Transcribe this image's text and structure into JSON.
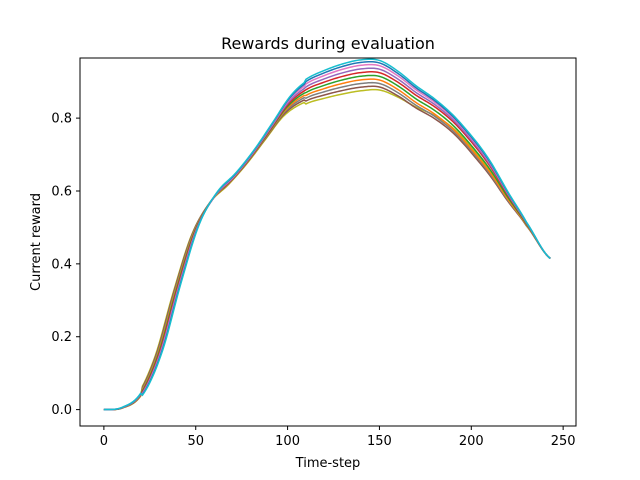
{
  "chart_data": {
    "type": "line",
    "title": "Rewards during evaluation",
    "xlabel": "Time-step",
    "ylabel": "Current reward",
    "xlim": [
      -13,
      257
    ],
    "ylim": [
      -0.045,
      0.965
    ],
    "xticks": [
      0,
      50,
      100,
      150,
      200,
      250
    ],
    "yticks": [
      0.0,
      0.2,
      0.4,
      0.6,
      0.8
    ],
    "ytick_labels": [
      "0.0",
      "0.2",
      "0.4",
      "0.6",
      "0.8"
    ],
    "grid": false,
    "legend": "none",
    "base_curve": {
      "x": [
        0,
        10,
        20,
        30,
        40,
        50,
        60,
        70,
        80,
        90,
        100,
        110,
        120,
        130,
        140,
        150,
        160,
        170,
        180,
        190,
        200,
        210,
        220,
        230,
        243
      ],
      "y": [
        0.0,
        0.005,
        0.04,
        0.15,
        0.33,
        0.49,
        0.58,
        0.63,
        0.69,
        0.76,
        0.83,
        0.87,
        0.89,
        0.905,
        0.915,
        0.915,
        0.89,
        0.855,
        0.825,
        0.785,
        0.73,
        0.665,
        0.585,
        0.51,
        0.415
      ]
    },
    "series": [
      {
        "offset": [
          0.0,
          -0.012,
          -0.04,
          -0.01
        ],
        "color": "#bcbd22"
      },
      {
        "offset": [
          0.0,
          -0.008,
          -0.03,
          -0.025
        ],
        "color": "#8c564b"
      },
      {
        "offset": [
          0.0,
          -0.005,
          -0.02,
          -0.02
        ],
        "color": "#7f7f7f"
      },
      {
        "offset": [
          0.0,
          -0.003,
          -0.01,
          -0.015
        ],
        "color": "#ff7f0e"
      },
      {
        "offset": [
          0.0,
          0.0,
          0.0,
          -0.005
        ],
        "color": "#2ca02c"
      },
      {
        "offset": [
          0.0,
          0.003,
          0.01,
          0.005
        ],
        "color": "#d62728"
      },
      {
        "offset": [
          0.0,
          0.006,
          0.02,
          0.01
        ],
        "color": "#9467bd"
      },
      {
        "offset": [
          0.0,
          0.01,
          0.03,
          0.015
        ],
        "color": "#e377c2"
      },
      {
        "offset": [
          0.0,
          0.014,
          0.038,
          0.018
        ],
        "color": "#1f77b4"
      },
      {
        "offset": [
          0.0,
          0.018,
          0.045,
          0.022
        ],
        "color": "#17becf"
      }
    ]
  }
}
